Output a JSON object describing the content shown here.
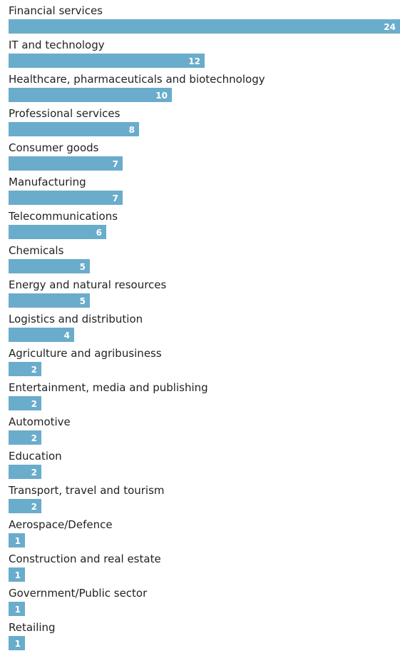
{
  "chart_data": {
    "type": "bar",
    "orientation": "horizontal",
    "categories": [
      "Financial services",
      "IT and technology",
      "Healthcare, pharmaceuticals and biotechnology",
      "Professional services",
      "Consumer goods",
      "Manufacturing",
      "Telecommunications",
      "Chemicals",
      "Energy and natural resources",
      "Logistics and distribution",
      "Agriculture and agribusiness",
      "Entertainment, media and publishing",
      "Automotive",
      "Education",
      "Transport, travel and tourism",
      "Aerospace/Defence",
      "Construction and real estate",
      "Government/Public sector",
      "Retailing"
    ],
    "values": [
      24,
      12,
      10,
      8,
      7,
      7,
      6,
      5,
      5,
      4,
      2,
      2,
      2,
      2,
      2,
      1,
      1,
      1,
      1
    ],
    "xlim": [
      0,
      24
    ],
    "bar_color": "#6aaccb",
    "label_color": "#222222",
    "value_label_color": "#ffffff",
    "grid": false,
    "legend": false
  }
}
